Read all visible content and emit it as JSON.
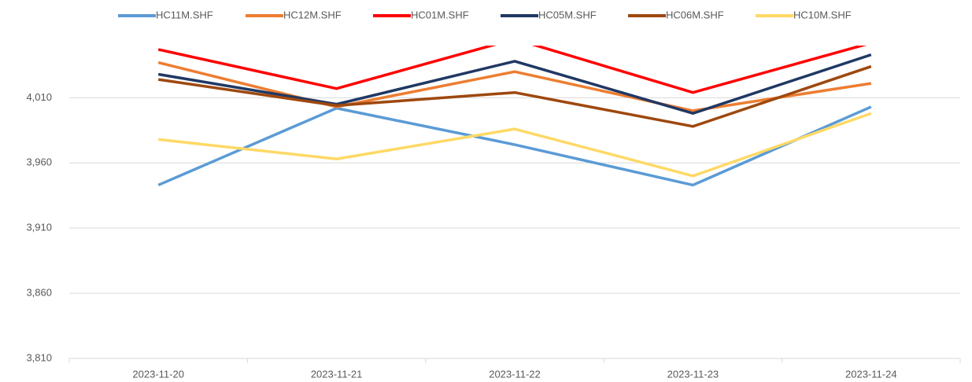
{
  "chart_data": {
    "type": "line",
    "x": [
      "2023-11-20",
      "2023-11-21",
      "2023-11-22",
      "2023-11-23",
      "2023-11-24"
    ],
    "series": [
      {
        "name": "HC11M.SHF",
        "color": "#5b9bd5",
        "values": [
          3943,
          4002,
          3974,
          3943,
          4003
        ]
      },
      {
        "name": "HC12M.SHF",
        "color": "#ed7d31",
        "values": [
          4037,
          4003,
          4030,
          4000,
          4021
        ]
      },
      {
        "name": "HC01M.SHF",
        "color": "#ff0000",
        "values": [
          4047,
          4017,
          4055,
          4014,
          4052
        ]
      },
      {
        "name": "HC05M.SHF",
        "color": "#203864",
        "values": [
          4028,
          4005,
          4038,
          3998,
          4043
        ]
      },
      {
        "name": "HC06M.SHF",
        "color": "#9e480e",
        "values": [
          4024,
          4004,
          4014,
          3988,
          4034
        ]
      },
      {
        "name": "HC10M.SHF",
        "color": "#ffd966",
        "values": [
          3978,
          3963,
          3986,
          3950,
          3998
        ]
      }
    ],
    "ylim": [
      3810,
      4050
    ],
    "yticks": [
      {
        "value": 3810,
        "label": "3,810"
      },
      {
        "value": 3860,
        "label": "3,860"
      },
      {
        "value": 3910,
        "label": "3,910"
      },
      {
        "value": 3960,
        "label": "3,960"
      },
      {
        "value": 4010,
        "label": "4,010"
      }
    ],
    "grid": true,
    "legend": "top"
  }
}
